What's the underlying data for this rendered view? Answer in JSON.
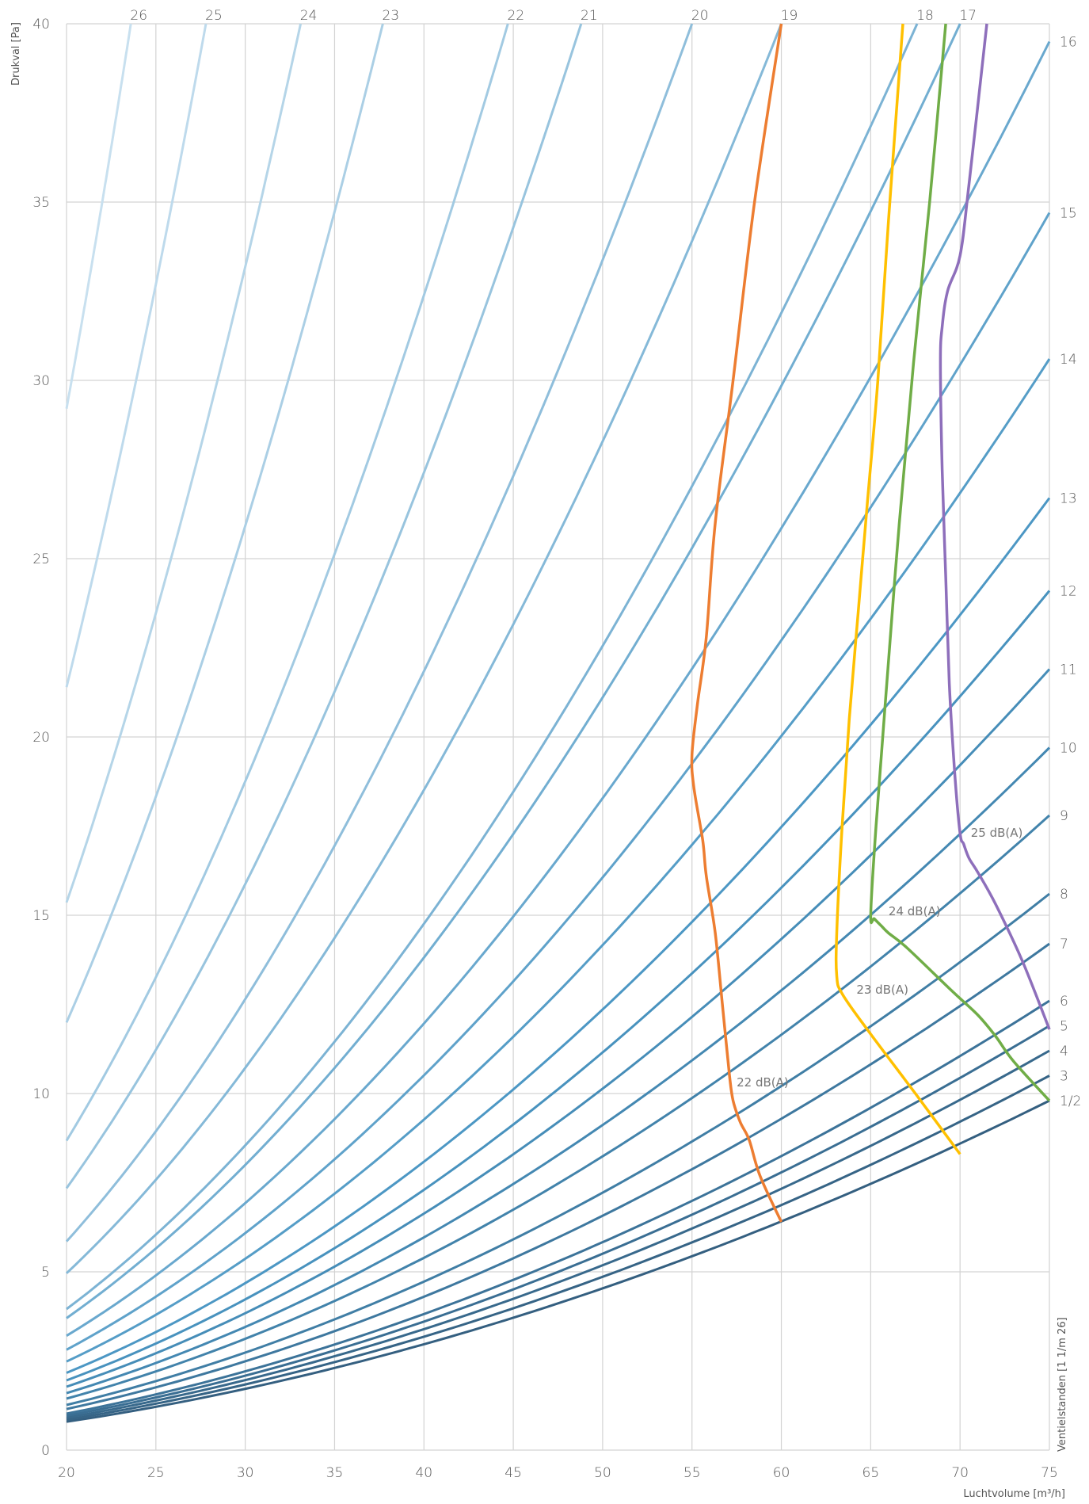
{
  "chart_data": {
    "type": "line",
    "xlabel": "Luchtvolume [m³/h]",
    "ylabel": "Drukval [Pa]",
    "valve_axis_label": "Ventielstanden [1 1/m 26]",
    "xlim": [
      20,
      75
    ],
    "ylim": [
      0,
      40
    ],
    "x_ticks": [
      "20",
      "25",
      "30",
      "35",
      "40",
      "45",
      "50",
      "55",
      "60",
      "65",
      "70",
      "75"
    ],
    "y_ticks": [
      "0",
      "5",
      "10",
      "15",
      "20",
      "25",
      "30",
      "35",
      "40"
    ],
    "grid": true,
    "valve_curves": [
      {
        "label": "1/2",
        "ends_at": "right",
        "x_end": 75,
        "y_end": 9.8
      },
      {
        "label": "3",
        "ends_at": "right",
        "x_end": 75,
        "y_end": 10.5
      },
      {
        "label": "4",
        "ends_at": "right",
        "x_end": 75,
        "y_end": 11.2
      },
      {
        "label": "5",
        "ends_at": "right",
        "x_end": 75,
        "y_end": 11.9
      },
      {
        "label": "6",
        "ends_at": "right",
        "x_end": 75,
        "y_end": 12.6
      },
      {
        "label": "7",
        "ends_at": "right",
        "x_end": 75,
        "y_end": 14.2
      },
      {
        "label": "8",
        "ends_at": "right",
        "x_end": 75,
        "y_end": 15.6
      },
      {
        "label": "9",
        "ends_at": "right",
        "x_end": 75,
        "y_end": 17.8
      },
      {
        "label": "10",
        "ends_at": "right",
        "x_end": 75,
        "y_end": 19.7
      },
      {
        "label": "11",
        "ends_at": "right",
        "x_end": 75,
        "y_end": 21.9
      },
      {
        "label": "12",
        "ends_at": "right",
        "x_end": 75,
        "y_end": 24.1
      },
      {
        "label": "13",
        "ends_at": "right",
        "x_end": 75,
        "y_end": 26.7
      },
      {
        "label": "14",
        "ends_at": "right",
        "x_end": 75,
        "y_end": 30.6
      },
      {
        "label": "15",
        "ends_at": "right",
        "x_end": 75,
        "y_end": 34.7
      },
      {
        "label": "16",
        "ends_at": "right",
        "x_end": 75,
        "y_end": 39.5
      },
      {
        "label": "17",
        "ends_at": "top",
        "x_end": 70,
        "y_end": 40
      },
      {
        "label": "18",
        "ends_at": "top",
        "x_end": 67.6,
        "y_end": 40
      },
      {
        "label": "19",
        "ends_at": "top",
        "x_end": 60,
        "y_end": 40
      },
      {
        "label": "20",
        "ends_at": "top",
        "x_end": 55,
        "y_end": 40
      },
      {
        "label": "21",
        "ends_at": "top",
        "x_end": 48.8,
        "y_end": 40
      },
      {
        "label": "22",
        "ends_at": "top",
        "x_end": 44.7,
        "y_end": 40
      },
      {
        "label": "23",
        "ends_at": "top",
        "x_end": 37.7,
        "y_end": 40
      },
      {
        "label": "24",
        "ends_at": "top",
        "x_end": 33.1,
        "y_end": 40
      },
      {
        "label": "25",
        "ends_at": "top",
        "x_end": 27.8,
        "y_end": 40
      },
      {
        "label": "26",
        "ends_at": "top",
        "x_end": 23.6,
        "y_end": 40
      }
    ],
    "series": [
      {
        "name": "22 dB(A)",
        "color": "#ed7d31",
        "label_at": [
          57.5,
          10.2
        ],
        "x": [
          60,
          58.8,
          58.2,
          57.7,
          57.3,
          57.1,
          56.7,
          56.3,
          55.8,
          55.6,
          55.1,
          55.0,
          55.3,
          55.8,
          56.3,
          57.3,
          58.5,
          60.0
        ],
        "y": [
          6.4,
          7.7,
          8.7,
          9.2,
          9.8,
          10.5,
          12.5,
          14.5,
          16.1,
          17.1,
          18.6,
          19.5,
          20.9,
          22.8,
          26.0,
          30.0,
          35.0,
          40.0
        ]
      },
      {
        "name": "23 dB(A)",
        "color": "#ffc000",
        "label_at": [
          64.2,
          12.8
        ],
        "x": [
          70.0,
          67.5,
          64.8,
          63.4,
          63.1,
          63.1,
          63.4,
          63.8,
          64.3,
          64.8,
          65.4,
          66.0,
          66.8
        ],
        "y": [
          8.3,
          10.0,
          11.8,
          12.8,
          13.3,
          14.5,
          17.5,
          20.5,
          23.5,
          26.5,
          30.0,
          34.5,
          40.0
        ]
      },
      {
        "name": "24 dB(A)",
        "color": "#70ad47",
        "label_at": [
          66.0,
          15.0
        ],
        "x": [
          75.0,
          73.0,
          72.0,
          71.0,
          69.5,
          67.0,
          66.0,
          65.6,
          65.2,
          65.0,
          65.3,
          65.9,
          66.6,
          67.4,
          68.3,
          69.2
        ],
        "y": [
          9.8,
          10.9,
          11.6,
          12.2,
          12.9,
          14.1,
          14.5,
          14.7,
          14.9,
          15.0,
          17.5,
          21.5,
          26.0,
          30.5,
          35.0,
          40.0
        ]
      },
      {
        "name": "25 dB(A)",
        "color": "#8e6fbb",
        "label_at": [
          70.6,
          17.2
        ],
        "x": [
          75.0,
          73.5,
          72.0,
          71.0,
          70.5,
          70.2,
          70.0,
          69.7,
          69.4,
          69.2,
          69.0,
          68.9,
          69.0,
          69.3,
          70.0,
          70.5,
          71.5
        ],
        "y": [
          11.8,
          13.7,
          15.3,
          16.2,
          16.6,
          17.0,
          17.3,
          19.0,
          21.5,
          24.5,
          27.5,
          30.5,
          31.5,
          32.5,
          33.5,
          35.5,
          40.0
        ]
      }
    ]
  }
}
